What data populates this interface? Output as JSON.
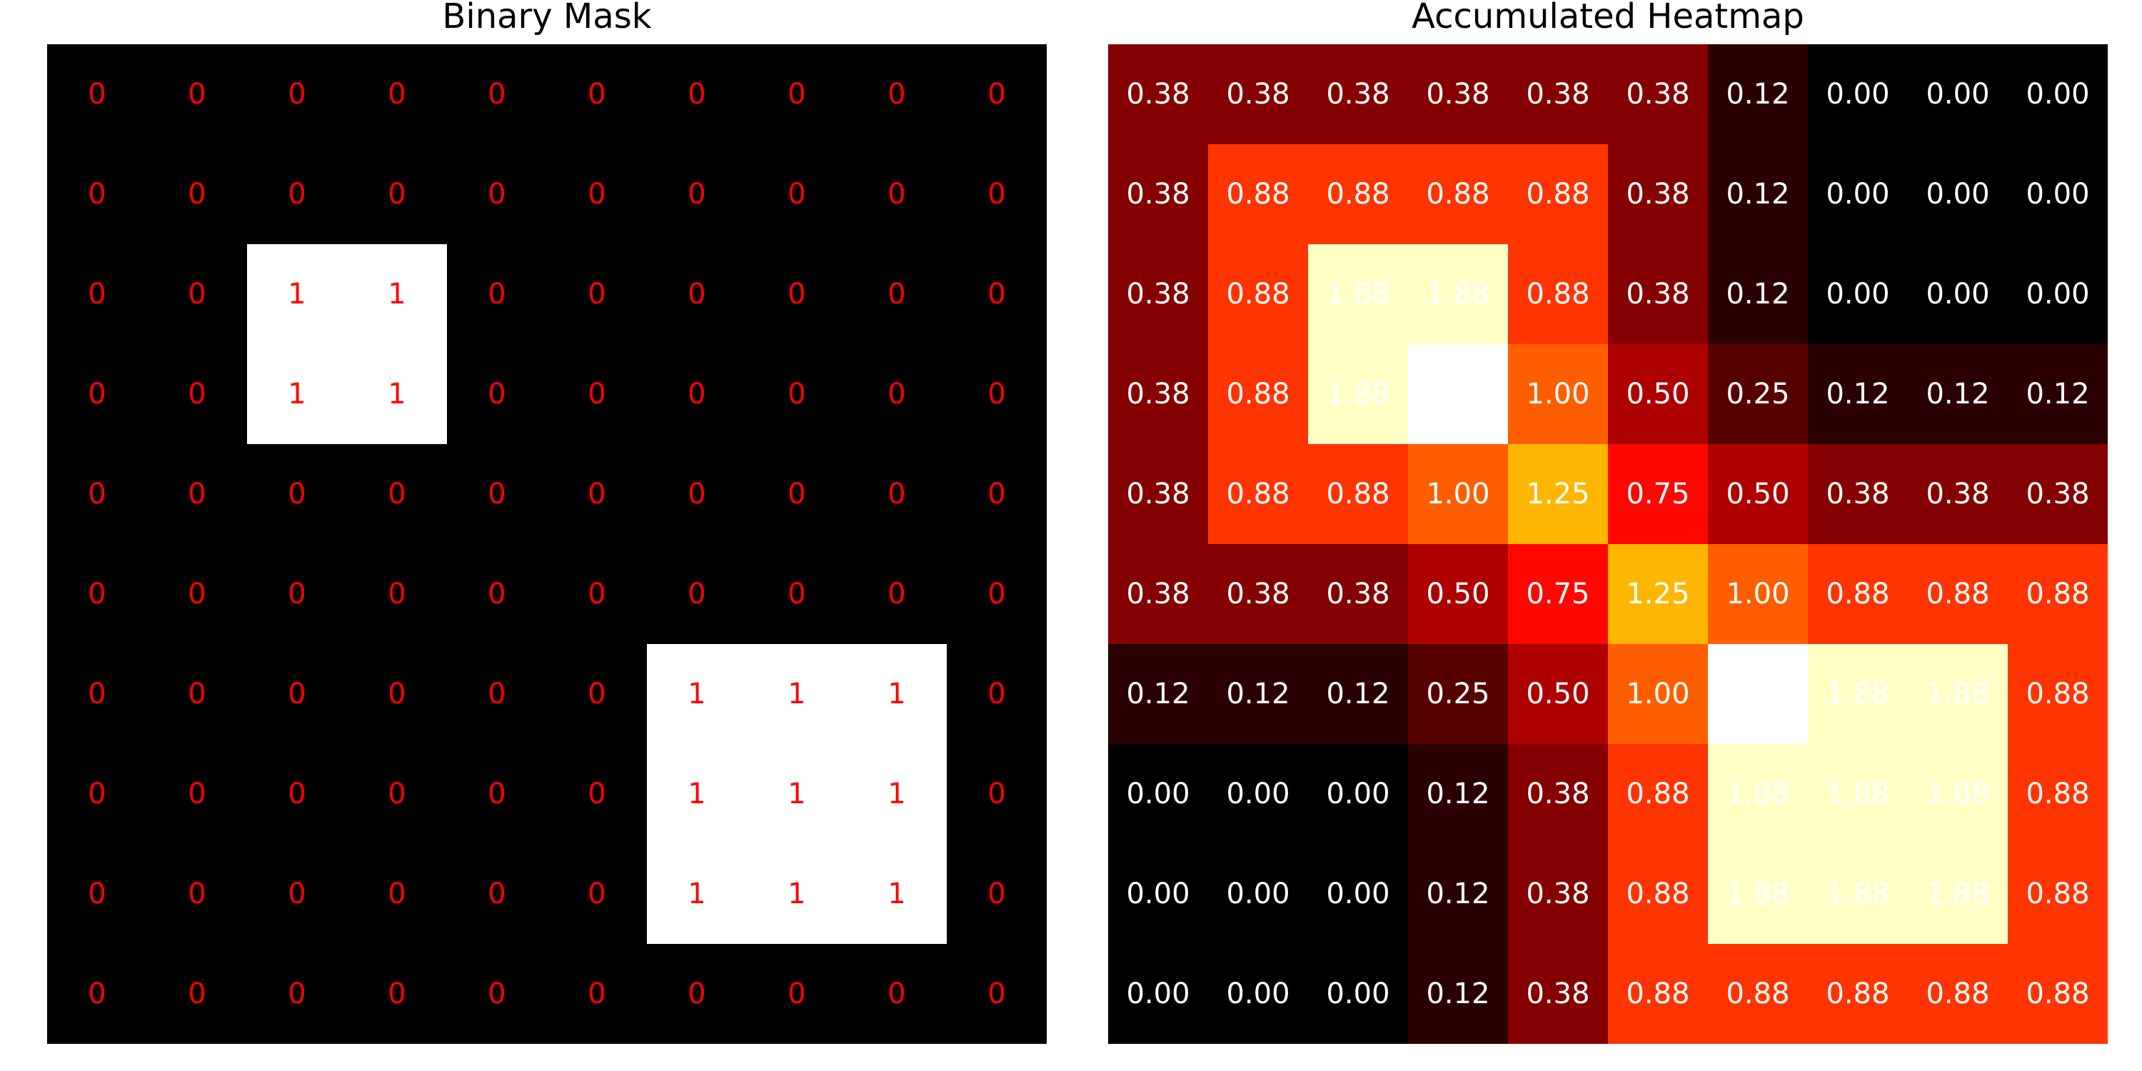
{
  "chart_data": [
    {
      "type": "heatmap",
      "title": "Binary Mask",
      "colormap": "gray",
      "label_color": "#ff0000",
      "vmin": 0,
      "vmax": 1,
      "values": [
        [
          0,
          0,
          0,
          0,
          0,
          0,
          0,
          0,
          0,
          0
        ],
        [
          0,
          0,
          0,
          0,
          0,
          0,
          0,
          0,
          0,
          0
        ],
        [
          0,
          0,
          1,
          1,
          0,
          0,
          0,
          0,
          0,
          0
        ],
        [
          0,
          0,
          1,
          1,
          0,
          0,
          0,
          0,
          0,
          0
        ],
        [
          0,
          0,
          0,
          0,
          0,
          0,
          0,
          0,
          0,
          0
        ],
        [
          0,
          0,
          0,
          0,
          0,
          0,
          0,
          0,
          0,
          0
        ],
        [
          0,
          0,
          0,
          0,
          0,
          0,
          1,
          1,
          1,
          0
        ],
        [
          0,
          0,
          0,
          0,
          0,
          0,
          1,
          1,
          1,
          0
        ],
        [
          0,
          0,
          0,
          0,
          0,
          0,
          1,
          1,
          1,
          0
        ],
        [
          0,
          0,
          0,
          0,
          0,
          0,
          0,
          0,
          0,
          0
        ]
      ],
      "labels": [
        [
          "0",
          "0",
          "0",
          "0",
          "0",
          "0",
          "0",
          "0",
          "0",
          "0"
        ],
        [
          "0",
          "0",
          "0",
          "0",
          "0",
          "0",
          "0",
          "0",
          "0",
          "0"
        ],
        [
          "0",
          "0",
          "1",
          "1",
          "0",
          "0",
          "0",
          "0",
          "0",
          "0"
        ],
        [
          "0",
          "0",
          "1",
          "1",
          "0",
          "0",
          "0",
          "0",
          "0",
          "0"
        ],
        [
          "0",
          "0",
          "0",
          "0",
          "0",
          "0",
          "0",
          "0",
          "0",
          "0"
        ],
        [
          "0",
          "0",
          "0",
          "0",
          "0",
          "0",
          "0",
          "0",
          "0",
          "0"
        ],
        [
          "0",
          "0",
          "0",
          "0",
          "0",
          "0",
          "1",
          "1",
          "1",
          "0"
        ],
        [
          "0",
          "0",
          "0",
          "0",
          "0",
          "0",
          "1",
          "1",
          "1",
          "0"
        ],
        [
          "0",
          "0",
          "0",
          "0",
          "0",
          "0",
          "1",
          "1",
          "1",
          "0"
        ],
        [
          "0",
          "0",
          "0",
          "0",
          "0",
          "0",
          "0",
          "0",
          "0",
          "0"
        ]
      ]
    },
    {
      "type": "heatmap",
      "title": "Accumulated Heatmap",
      "colormap": "hot",
      "label_color": "#ffffff",
      "vmin": 0,
      "vmax": 2.0,
      "values": [
        [
          0.38,
          0.38,
          0.38,
          0.38,
          0.38,
          0.38,
          0.12,
          0.0,
          0.0,
          0.0
        ],
        [
          0.38,
          0.88,
          0.88,
          0.88,
          0.88,
          0.38,
          0.12,
          0.0,
          0.0,
          0.0
        ],
        [
          0.38,
          0.88,
          1.88,
          1.88,
          0.88,
          0.38,
          0.12,
          0.0,
          0.0,
          0.0
        ],
        [
          0.38,
          0.88,
          1.88,
          2.0,
          1.0,
          0.5,
          0.25,
          0.12,
          0.12,
          0.12
        ],
        [
          0.38,
          0.88,
          0.88,
          1.0,
          1.25,
          0.75,
          0.5,
          0.38,
          0.38,
          0.38
        ],
        [
          0.38,
          0.38,
          0.38,
          0.5,
          0.75,
          1.25,
          1.0,
          0.88,
          0.88,
          0.88
        ],
        [
          0.12,
          0.12,
          0.12,
          0.25,
          0.5,
          1.0,
          2.0,
          1.88,
          1.88,
          0.88
        ],
        [
          0.0,
          0.0,
          0.0,
          0.12,
          0.38,
          0.88,
          1.88,
          1.88,
          1.88,
          0.88
        ],
        [
          0.0,
          0.0,
          0.0,
          0.12,
          0.38,
          0.88,
          1.88,
          1.88,
          1.88,
          0.88
        ],
        [
          0.0,
          0.0,
          0.0,
          0.12,
          0.38,
          0.88,
          0.88,
          0.88,
          0.88,
          0.88
        ]
      ],
      "labels": [
        [
          "0.38",
          "0.38",
          "0.38",
          "0.38",
          "0.38",
          "0.38",
          "0.12",
          "0.00",
          "0.00",
          "0.00"
        ],
        [
          "0.38",
          "0.88",
          "0.88",
          "0.88",
          "0.88",
          "0.38",
          "0.12",
          "0.00",
          "0.00",
          "0.00"
        ],
        [
          "0.38",
          "0.88",
          "1.88",
          "1.88",
          "0.88",
          "0.38",
          "0.12",
          "0.00",
          "0.00",
          "0.00"
        ],
        [
          "0.38",
          "0.88",
          "1.88",
          "",
          "1.00",
          "0.50",
          "0.25",
          "0.12",
          "0.12",
          "0.12"
        ],
        [
          "0.38",
          "0.88",
          "0.88",
          "1.00",
          "1.25",
          "0.75",
          "0.50",
          "0.38",
          "0.38",
          "0.38"
        ],
        [
          "0.38",
          "0.38",
          "0.38",
          "0.50",
          "0.75",
          "1.25",
          "1.00",
          "0.88",
          "0.88",
          "0.88"
        ],
        [
          "0.12",
          "0.12",
          "0.12",
          "0.25",
          "0.50",
          "1.00",
          "",
          "1.88",
          "1.88",
          "0.88"
        ],
        [
          "0.00",
          "0.00",
          "0.00",
          "0.12",
          "0.38",
          "0.88",
          "1.88",
          "1.88",
          "1.88",
          "0.88"
        ],
        [
          "0.00",
          "0.00",
          "0.00",
          "0.12",
          "0.38",
          "0.88",
          "1.88",
          "1.88",
          "1.88",
          "0.88"
        ],
        [
          "0.00",
          "0.00",
          "0.00",
          "0.12",
          "0.38",
          "0.88",
          "0.88",
          "0.88",
          "0.88",
          "0.88"
        ]
      ]
    }
  ]
}
